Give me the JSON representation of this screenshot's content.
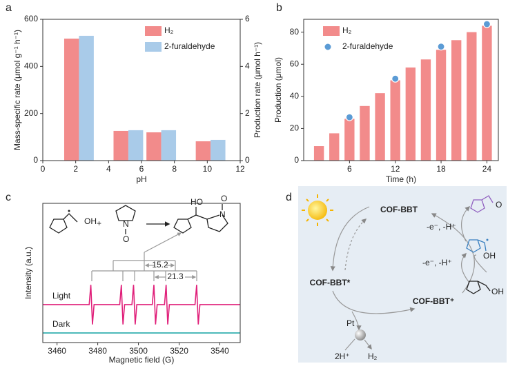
{
  "panel_labels": [
    "a",
    "b",
    "c",
    "d"
  ],
  "chart_data": [
    {
      "type": "bar",
      "x_label": "pH",
      "y_label": "Mass-specific rate (μmol g⁻¹ h⁻¹)",
      "y2_label": "Production rate (μmol h⁻¹)",
      "x": [
        2,
        5,
        7,
        10
      ],
      "series": [
        {
          "name": "H₂",
          "color": "#f28b8b",
          "values": [
            518,
            126,
            120,
            82
          ]
        },
        {
          "name": "2-furaldehyde",
          "color": "#a9cbe9",
          "values": [
            5.3,
            1.29,
            1.29,
            0.88
          ],
          "axis": "y2"
        }
      ],
      "xlim": [
        0,
        12
      ],
      "xticks": [
        0,
        2,
        4,
        6,
        8,
        10,
        12
      ],
      "ylim": [
        0,
        600
      ],
      "yticks": [
        0,
        200,
        400,
        600
      ],
      "y2lim": [
        0,
        6
      ],
      "y2ticks": [
        0,
        2,
        4,
        6
      ],
      "legend": "top"
    },
    {
      "type": "bar",
      "x_label": "Time (h)",
      "y_label": "Production (μmol)",
      "x": [
        2,
        4,
        6,
        8,
        10,
        12,
        14,
        16,
        18,
        20,
        22,
        24
      ],
      "series": [
        {
          "name": "H₂",
          "color": "#f28b8b",
          "values": [
            9,
            17,
            26,
            34,
            42,
            50,
            58,
            63,
            69,
            75,
            80,
            84
          ]
        },
        {
          "name": "2-furaldehyde",
          "color": "#5b9bd5",
          "type": "scatter",
          "values": [
            null,
            null,
            27,
            null,
            null,
            51,
            null,
            null,
            71,
            null,
            null,
            85
          ]
        }
      ],
      "xlim": [
        0,
        25.5
      ],
      "xticks": [
        6,
        12,
        18,
        24
      ],
      "ylim": [
        0,
        88
      ],
      "yticks": [
        0,
        20,
        40,
        60,
        80
      ],
      "legend": "top left"
    },
    {
      "type": "line",
      "x_label": "Magnetic field (G)",
      "y_label": "Intensity (a.u.)",
      "series": [
        {
          "name": "Light",
          "color": "#e0207a",
          "x": [
            3453,
            3475.8,
            3476.6,
            3477.4,
            3478.2,
            3490.8,
            3491.6,
            3492.4,
            3493.2,
            3496.8,
            3497.6,
            3498.4,
            3499.2,
            3506.8,
            3507.6,
            3508.4,
            3509.2,
            3512.8,
            3513.6,
            3514.4,
            3515.2,
            3527.8,
            3528.6,
            3529.4,
            3530.2,
            3550
          ],
          "values": [
            10,
            10,
            17,
            3,
            10,
            10,
            17,
            3,
            10,
            10,
            17,
            3,
            10,
            10,
            17,
            3,
            10,
            10,
            17,
            3,
            10,
            10,
            17,
            3,
            10,
            10
          ]
        },
        {
          "name": "Dark",
          "color": "#20a8a8",
          "x": [
            3453,
            3550
          ],
          "values": [
            0,
            0
          ]
        }
      ],
      "xlim": [
        3453,
        3550
      ],
      "xticks": [
        3460,
        3480,
        3500,
        3520,
        3540
      ],
      "ylim": [
        -3.4,
        45.8
      ],
      "annotations": [
        "15.2",
        "21.3"
      ],
      "structures": {
        "reactant_oh": "OH",
        "plus": "+",
        "dmpo_n": "N",
        "dmpo_o": "O",
        "adduct_ho": "HO",
        "adduct_n": "N",
        "adduct_o": "O"
      }
    }
  ],
  "diagram": {
    "cof": "COF-BBT",
    "cof_excited": "COF-BBT*",
    "cof_oxidized": "COF-BBT⁺",
    "step1": "-e⁻, -H⁺",
    "step2": "-e⁻, -H⁺",
    "catalyst": "Pt",
    "protons": "2H⁺",
    "hydrogen": "H₂",
    "alcohol_oh": "OH",
    "radical_oh": "OH",
    "aldehyde_o": "O"
  }
}
